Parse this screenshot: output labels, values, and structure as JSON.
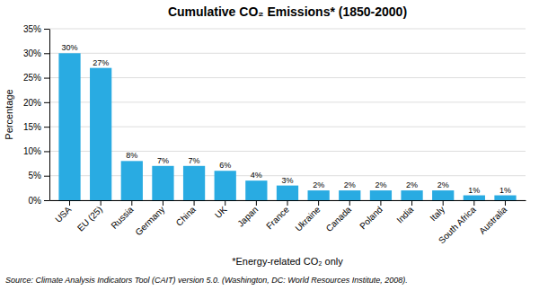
{
  "chart_data": {
    "type": "bar",
    "title": "Cumulative CO₂ Emissions* (1850-2000)",
    "ylabel": "Percentage",
    "xlabel": "*Energy-related CO₂ only",
    "annotations": [
      "Source: Climate Analysis Indicators Tool (CAIT) version 5.0. (Washington, DC: World Resources Institute, 2008)."
    ],
    "categories": [
      "USA",
      "EU (25)",
      "Russia",
      "Germany",
      "China",
      "UK",
      "Japan",
      "France",
      "Ukraine",
      "Canada",
      "Poland",
      "India",
      "Italy",
      "South Africa",
      "Australia"
    ],
    "values": [
      30,
      27,
      8,
      7,
      7,
      6,
      4,
      3,
      2,
      2,
      2,
      2,
      2,
      1,
      1
    ],
    "value_labels": [
      "30%",
      "27%",
      "8%",
      "7%",
      "7%",
      "6%",
      "4%",
      "3%",
      "2%",
      "2%",
      "2%",
      "2%",
      "2%",
      "1%",
      "1%"
    ],
    "data_labels": true,
    "color": "#29ABE2",
    "ylim": [
      0,
      35
    ],
    "yticks": [
      {
        "value": 0,
        "label": "0%"
      },
      {
        "value": 5,
        "label": "5%"
      },
      {
        "value": 10,
        "label": "10%"
      },
      {
        "value": 15,
        "label": "15%"
      },
      {
        "value": 20,
        "label": "20%"
      },
      {
        "value": 25,
        "label": "25%"
      },
      {
        "value": 30,
        "label": "30%"
      },
      {
        "value": 35,
        "label": "35%"
      }
    ],
    "grid": true
  }
}
